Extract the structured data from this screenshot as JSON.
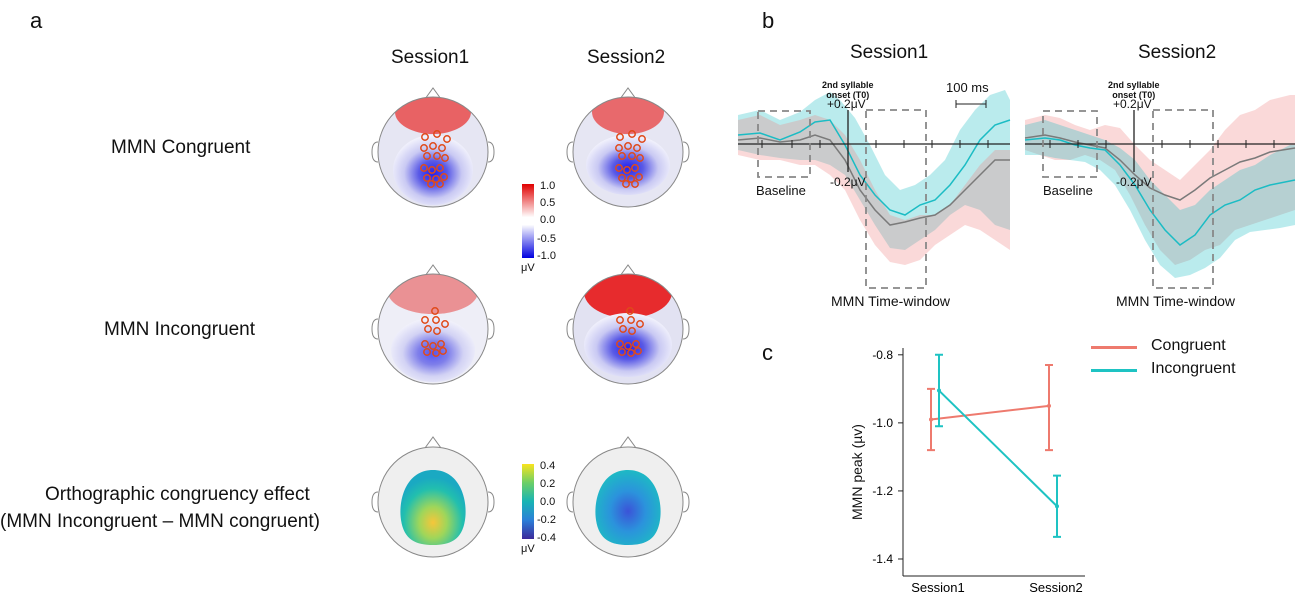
{
  "panel_a": {
    "letter": "a",
    "session_headers": [
      "Session1",
      "Session2"
    ],
    "row_labels": {
      "mmn_congruent": "MMN Congruent",
      "mmn_incongruent": "MMN Incongruent",
      "ortho_line1": "Orthographic congruency effect",
      "ortho_line2": "(MMN Incongruent – MMN congruent)"
    },
    "colorbar_red_blue": {
      "ticks": [
        "1.0",
        "0.5",
        "0.0",
        "-0.5",
        "-1.0"
      ],
      "unit": "μV"
    },
    "colorbar_parula": {
      "ticks": [
        "0.4",
        "0.2",
        "0.0",
        "-0.2",
        "-0.4"
      ],
      "unit": "μV"
    }
  },
  "panel_b": {
    "letter": "b",
    "session_headers": [
      "Session1",
      "Session2"
    ],
    "onset_label_line1": "2nd syllable",
    "onset_label_line2": "onset (T0)",
    "pos_amp": "+0.2μV",
    "neg_amp": "-0.2μV",
    "scale_bar": "100 ms",
    "baseline_label": "Baseline",
    "window_label": "MMN Time-window",
    "colors": {
      "congruent": "#f08080",
      "incongruent": "#1bbcc4",
      "mean": "#7a7a7a"
    }
  },
  "panel_c": {
    "letter": "c",
    "legend": [
      "Congruent",
      "Incongruent"
    ],
    "colors": {
      "congruent": "#ee7a6e",
      "incongruent": "#1ec3c3"
    }
  },
  "chart_data": {
    "type": "line",
    "categories": [
      "Session1",
      "Session2"
    ],
    "ylabel": "MMN peak (µv)",
    "xlabel": "",
    "yticks": [
      "-0.8",
      "-1.0",
      "-1.2",
      "-1.4"
    ],
    "ylim": [
      -1.45,
      -0.78
    ],
    "series": [
      {
        "name": "Congruent",
        "values": [
          -0.99,
          -0.95
        ],
        "err_low": [
          -1.08,
          -1.08
        ],
        "err_high": [
          -0.9,
          -0.83
        ],
        "color": "#ee7a6e"
      },
      {
        "name": "Incongruent",
        "values": [
          -0.905,
          -1.245
        ],
        "err_low": [
          -1.01,
          -1.335
        ],
        "err_high": [
          -0.8,
          -1.155
        ],
        "color": "#1ec3c3"
      }
    ],
    "legend_position": "top-right"
  }
}
